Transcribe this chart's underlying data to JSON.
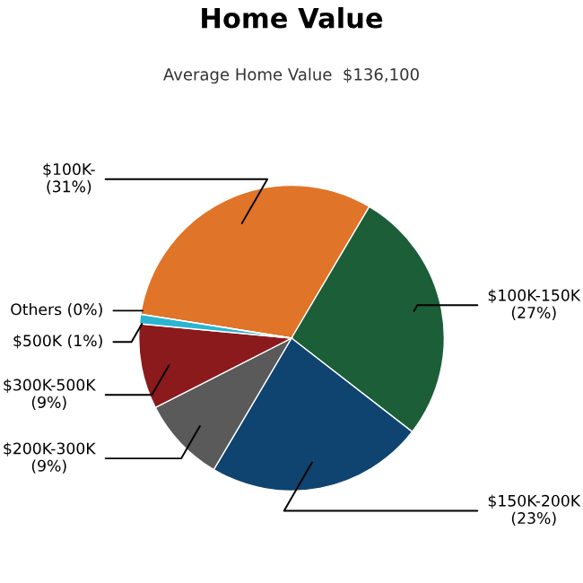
{
  "chart_data": {
    "type": "pie",
    "title": "Home Value",
    "subtitle": "Average Home Value  $136,100",
    "categories": [
      "$100K-",
      "$100K-150K",
      "$150K-200K",
      "$200K-300K",
      "$300K-500K",
      "$500K",
      "Others"
    ],
    "values": [
      31,
      27,
      23,
      9,
      9,
      1,
      0
    ],
    "value_labels": [
      "(31%)",
      "(27%)",
      "(23%)",
      "(9%)",
      "(9%)",
      "(1%)",
      "(0%)"
    ],
    "colors": [
      "#e07428",
      "#1b5e38",
      "#0f4470",
      "#5a5a5a",
      "#8b1a1d",
      "#2bb5d0",
      "#9a9a9a"
    ]
  }
}
